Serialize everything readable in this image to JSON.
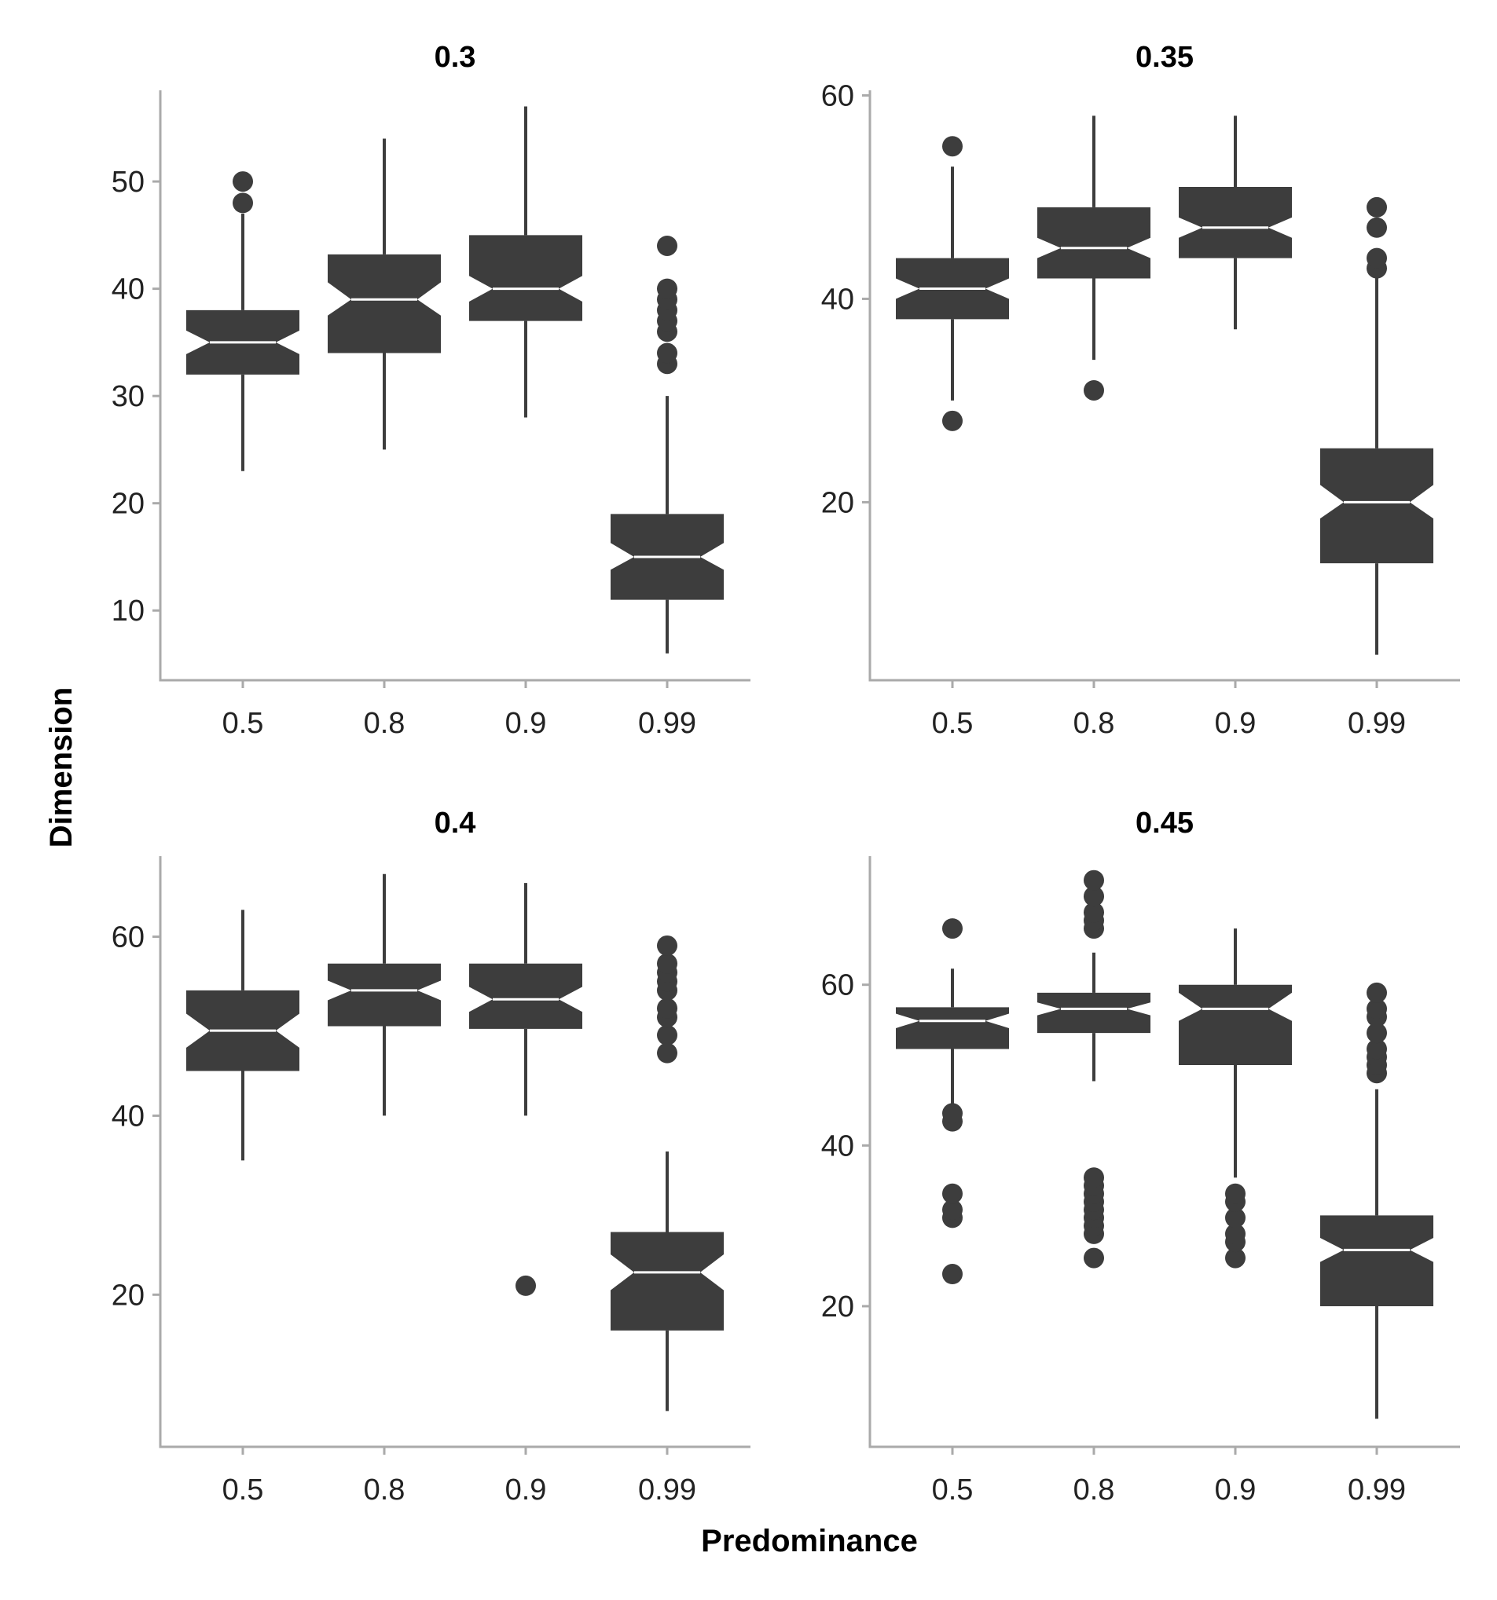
{
  "chart_data": {
    "type": "boxplot",
    "xlabel": "Predominance",
    "ylabel": "Dimension",
    "categories": [
      "0.5",
      "0.8",
      "0.9",
      "0.99"
    ],
    "color": "#3d3d3d",
    "notched": true,
    "panels": [
      {
        "title": "0.3",
        "ylim": [
          3.5,
          58.5
        ],
        "yticks": [
          10,
          20,
          30,
          40,
          50
        ],
        "boxes": [
          {
            "category": "0.5",
            "whislo": 23,
            "q1": 32,
            "med": 35,
            "q3": 38,
            "whishi": 47,
            "notch": [
              33.9,
              36.1
            ],
            "fliers": [
              48,
              50
            ]
          },
          {
            "category": "0.8",
            "whislo": 25,
            "q1": 34,
            "med": 39,
            "q3": 43.2,
            "whishi": 54,
            "notch": [
              37.5,
              40.6
            ],
            "fliers": []
          },
          {
            "category": "0.9",
            "whislo": 28,
            "q1": 37,
            "med": 40,
            "q3": 45,
            "whishi": 57,
            "notch": [
              38.8,
              41.2
            ],
            "fliers": []
          },
          {
            "category": "0.99",
            "whislo": 6,
            "q1": 11,
            "med": 15,
            "q3": 19,
            "whishi": 30,
            "notch": [
              13.8,
              16.3
            ],
            "fliers": [
              33,
              34,
              36,
              37,
              38,
              39,
              40,
              44
            ]
          }
        ]
      },
      {
        "title": "0.35",
        "ylim": [
          2.5,
          60.5
        ],
        "yticks": [
          20,
          40,
          60
        ],
        "boxes": [
          {
            "category": "0.5",
            "whislo": 30,
            "q1": 38,
            "med": 41,
            "q3": 44,
            "whishi": 53,
            "notch": [
              40,
              42
            ],
            "fliers": [
              28,
              55
            ]
          },
          {
            "category": "0.8",
            "whislo": 34,
            "q1": 42,
            "med": 45,
            "q3": 49,
            "whishi": 58,
            "notch": [
              44,
              46
            ],
            "fliers": [
              31
            ]
          },
          {
            "category": "0.9",
            "whislo": 37,
            "q1": 44,
            "med": 47,
            "q3": 51,
            "whishi": 58,
            "notch": [
              46,
              48
            ],
            "fliers": []
          },
          {
            "category": "0.99",
            "whislo": 5,
            "q1": 14,
            "med": 20,
            "q3": 25.3,
            "whishi": 43,
            "notch": [
              18.4,
              21.7
            ],
            "fliers": [
              43,
              44,
              47,
              49
            ]
          }
        ]
      },
      {
        "title": "0.4",
        "ylim": [
          3,
          69
        ],
        "yticks": [
          20,
          40,
          60
        ],
        "boxes": [
          {
            "category": "0.5",
            "whislo": 35,
            "q1": 45,
            "med": 49.5,
            "q3": 54,
            "whishi": 63,
            "notch": [
              47.6,
              51.4
            ],
            "fliers": []
          },
          {
            "category": "0.8",
            "whislo": 40,
            "q1": 50,
            "med": 54,
            "q3": 57,
            "whishi": 67,
            "notch": [
              52.9,
              55.1
            ],
            "fliers": []
          },
          {
            "category": "0.9",
            "whislo": 40,
            "q1": 49.7,
            "med": 53,
            "q3": 57,
            "whishi": 66,
            "notch": [
              51.6,
              54.4
            ],
            "fliers": [
              21
            ]
          },
          {
            "category": "0.99",
            "whislo": 7,
            "q1": 16,
            "med": 22.5,
            "q3": 27,
            "whishi": 36,
            "notch": [
              20.5,
              24.5
            ],
            "fliers": [
              47,
              49,
              51,
              52,
              54,
              55,
              56,
              57,
              59
            ]
          }
        ]
      },
      {
        "title": "0.45",
        "ylim": [
          2.5,
          76
        ],
        "yticks": [
          20,
          40,
          60
        ],
        "boxes": [
          {
            "category": "0.5",
            "whislo": 45,
            "q1": 52,
            "med": 55.5,
            "q3": 57.2,
            "whishi": 62,
            "notch": [
              54.6,
              56.4
            ],
            "fliers": [
              24,
              31,
              32,
              34,
              43,
              44,
              67
            ]
          },
          {
            "category": "0.8",
            "whislo": 48,
            "q1": 54,
            "med": 57,
            "q3": 59,
            "whishi": 64,
            "notch": [
              56.2,
              57.8
            ],
            "fliers": [
              26,
              29,
              30,
              31,
              32,
              33,
              34,
              35,
              36,
              67,
              68,
              69,
              71,
              73
            ]
          },
          {
            "category": "0.9",
            "whislo": 36,
            "q1": 50,
            "med": 57,
            "q3": 60,
            "whishi": 67,
            "notch": [
              55.5,
              59
            ],
            "fliers": [
              26,
              28,
              29,
              31,
              33,
              34
            ]
          },
          {
            "category": "0.99",
            "whislo": 6,
            "q1": 20,
            "med": 27,
            "q3": 31.3,
            "whishi": 47,
            "notch": [
              25.5,
              28.5
            ],
            "fliers": [
              49,
              50,
              51,
              52,
              54,
              56,
              57,
              59
            ]
          }
        ]
      }
    ]
  }
}
